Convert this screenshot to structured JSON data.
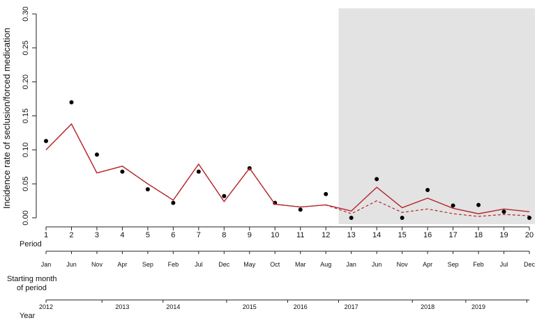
{
  "chart_data": {
    "type": "line",
    "ylabel": "Incidence rate of seclusion/forced medication",
    "xlabel": "Period",
    "ylim": [
      0,
      0.3
    ],
    "yticks": [
      "0.00",
      "0.05",
      "0.10",
      "0.15",
      "0.20",
      "0.25",
      "0.30"
    ],
    "ytick_values": [
      0,
      0.05,
      0.1,
      0.15,
      0.2,
      0.25,
      0.3
    ],
    "x": [
      1,
      2,
      3,
      4,
      5,
      6,
      7,
      8,
      9,
      10,
      11,
      12,
      13,
      14,
      15,
      16,
      17,
      18,
      19,
      20
    ],
    "shaded_region": [
      12.5,
      20
    ],
    "grid": false,
    "series": [
      {
        "style": "points",
        "values": [
          0.113,
          0.17,
          0.093,
          0.068,
          0.042,
          0.022,
          0.068,
          0.032,
          0.073,
          0.022,
          0.012,
          0.035,
          0.0,
          0.057,
          0.0,
          0.041,
          0.018,
          0.019,
          0.009,
          0.0
        ]
      },
      {
        "style": "solid",
        "values": [
          0.1,
          0.138,
          0.066,
          0.076,
          0.05,
          0.026,
          0.079,
          0.024,
          0.073,
          0.02,
          0.016,
          0.019,
          0.01,
          0.045,
          0.015,
          0.029,
          0.014,
          0.006,
          0.013,
          0.009
        ]
      },
      {
        "style": "dashed",
        "values": [
          0.1,
          0.138,
          0.066,
          0.076,
          0.05,
          0.026,
          0.079,
          0.024,
          0.073,
          0.02,
          0.016,
          0.019,
          0.006,
          0.025,
          0.008,
          0.013,
          0.006,
          0.002,
          0.005,
          0.003
        ]
      }
    ],
    "months": [
      "Jan",
      "Jun",
      "Nov",
      "Apr",
      "Sep",
      "Feb",
      "Jul",
      "Dec",
      "May",
      "Oct",
      "Mar",
      "Aug",
      "Jan",
      "Jun",
      "Nov",
      "Apr",
      "Sep",
      "Feb",
      "Jul",
      "Dec"
    ],
    "month_label": "Starting month of period",
    "year_label": "Year",
    "years": [
      {
        "label": "2012",
        "at": 1
      },
      {
        "label": "2013",
        "at": 4
      },
      {
        "label": "2014",
        "at": 6
      },
      {
        "label": "2015",
        "at": 9
      },
      {
        "label": "2016",
        "at": 11
      },
      {
        "label": "2017",
        "at": 13
      },
      {
        "label": "2018",
        "at": 16
      },
      {
        "label": "2019",
        "at": 18
      }
    ],
    "year_boundaries": [
      1,
      3.2,
      5.6,
      8.1,
      10.5,
      12.5,
      15.4,
      17.5,
      19.9
    ],
    "colors": {
      "line": "#b5252b",
      "points": "#000000",
      "shade": "#e3e3e3",
      "axis": "#222222"
    }
  }
}
